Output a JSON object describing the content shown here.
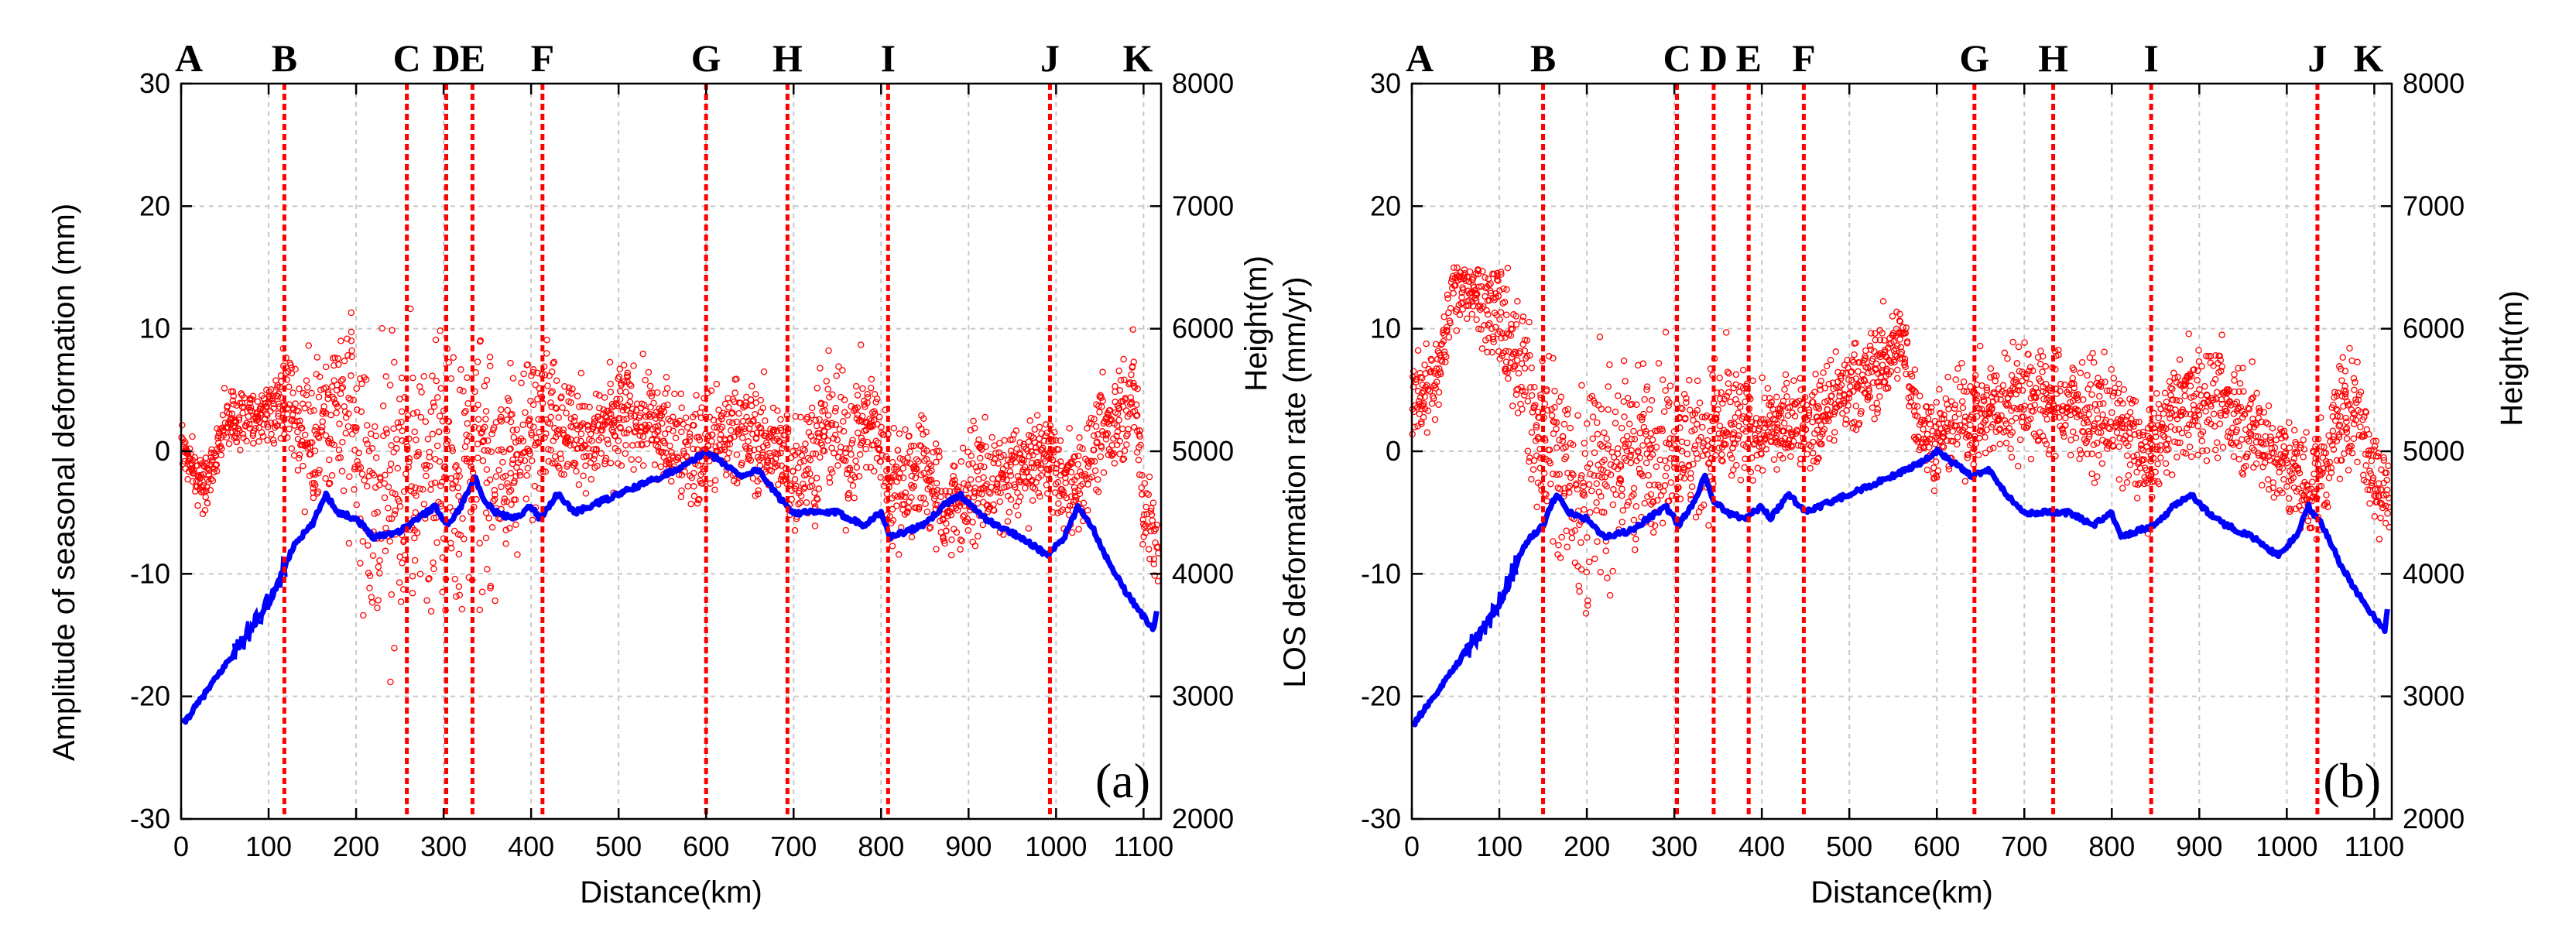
{
  "chart_data": [
    {
      "type": "scatter",
      "panel_label": "(a)",
      "xlabel": "Distance(km)",
      "ylabel": "Amplitude of seasonal deformation (mm)",
      "ylabel2": "",
      "ylim": [
        -30,
        30
      ],
      "y2lim": [
        2000,
        8000
      ],
      "xlim": [
        0,
        1120
      ],
      "xticks": [
        0,
        100,
        200,
        300,
        400,
        500,
        600,
        700,
        800,
        900,
        1000,
        1100
      ],
      "yticks": [
        -30,
        -20,
        -10,
        0,
        10,
        20,
        30
      ],
      "y2ticks": [
        2000,
        3000,
        4000,
        5000,
        6000,
        7000,
        8000
      ],
      "grid": true,
      "sections": [
        {
          "label": "A",
          "x": 0,
          "line": false
        },
        {
          "label": "B",
          "x": 118,
          "line": true
        },
        {
          "label": "C",
          "x": 258,
          "line": true
        },
        {
          "label": "D",
          "x": 303,
          "line": true
        },
        {
          "label": "E",
          "x": 333,
          "line": true
        },
        {
          "label": "F",
          "x": 413,
          "line": true
        },
        {
          "label": "G",
          "x": 600,
          "line": true
        },
        {
          "label": "H",
          "x": 693,
          "line": true
        },
        {
          "label": "I",
          "x": 808,
          "line": true
        },
        {
          "label": "J",
          "x": 993,
          "line": true
        },
        {
          "label": "K",
          "x": 1115,
          "line": false
        }
      ],
      "deformation_series": {
        "color": "#ff0000",
        "points": [
          [
            0,
            1
          ],
          [
            10,
            -1
          ],
          [
            20,
            -2.5
          ],
          [
            30,
            -2
          ],
          [
            40,
            0
          ],
          [
            50,
            2.5
          ],
          [
            70,
            2.5
          ],
          [
            90,
            3
          ],
          [
            105,
            3.5
          ],
          [
            118,
            5
          ],
          [
            130,
            3
          ],
          [
            150,
            1
          ],
          [
            170,
            4
          ],
          [
            190,
            2
          ],
          [
            210,
            -4
          ],
          [
            240,
            -3
          ],
          [
            260,
            -2
          ],
          [
            280,
            -3
          ],
          [
            300,
            -1
          ],
          [
            320,
            -2
          ],
          [
            340,
            -1
          ],
          [
            360,
            -2
          ],
          [
            380,
            0
          ],
          [
            400,
            1
          ],
          [
            410,
            4
          ],
          [
            430,
            3
          ],
          [
            450,
            1.5
          ],
          [
            470,
            1
          ],
          [
            490,
            2
          ],
          [
            510,
            3
          ],
          [
            530,
            2.5
          ],
          [
            550,
            1.5
          ],
          [
            570,
            1
          ],
          [
            590,
            -0.5
          ],
          [
            600,
            0.5
          ],
          [
            620,
            1
          ],
          [
            640,
            2
          ],
          [
            660,
            1
          ],
          [
            680,
            0
          ],
          [
            700,
            -2
          ],
          [
            720,
            0
          ],
          [
            740,
            2
          ],
          [
            760,
            0
          ],
          [
            780,
            2.5
          ],
          [
            800,
            1
          ],
          [
            810,
            -3
          ],
          [
            830,
            -2
          ],
          [
            850,
            -1
          ],
          [
            870,
            -5
          ],
          [
            890,
            -4
          ],
          [
            910,
            -2
          ],
          [
            930,
            -3
          ],
          [
            950,
            -2
          ],
          [
            970,
            -1
          ],
          [
            990,
            0
          ],
          [
            1010,
            -3
          ],
          [
            1030,
            -2
          ],
          [
            1050,
            1
          ],
          [
            1070,
            3
          ],
          [
            1090,
            5
          ],
          [
            1100,
            -5
          ],
          [
            1110,
            -6
          ],
          [
            1118,
            -8
          ]
        ],
        "spread": [
          [
            0,
            1.5
          ],
          [
            100,
            1.5
          ],
          [
            160,
            5
          ],
          [
            200,
            7
          ],
          [
            260,
            8
          ],
          [
            320,
            8
          ],
          [
            380,
            5
          ],
          [
            440,
            3
          ],
          [
            600,
            3
          ],
          [
            680,
            3
          ],
          [
            700,
            4
          ],
          [
            800,
            3
          ],
          [
            900,
            3
          ],
          [
            1000,
            2.5
          ],
          [
            1118,
            3
          ]
        ]
      },
      "height_series": {
        "color": "#0000ff",
        "points": [
          [
            0,
            2750
          ],
          [
            20,
            2950
          ],
          [
            40,
            3150
          ],
          [
            60,
            3350
          ],
          [
            80,
            3550
          ],
          [
            100,
            3750
          ],
          [
            118,
            4050
          ],
          [
            130,
            4250
          ],
          [
            150,
            4400
          ],
          [
            165,
            4650
          ],
          [
            180,
            4500
          ],
          [
            200,
            4450
          ],
          [
            220,
            4300
          ],
          [
            250,
            4350
          ],
          [
            270,
            4450
          ],
          [
            290,
            4550
          ],
          [
            305,
            4400
          ],
          [
            320,
            4550
          ],
          [
            335,
            4800
          ],
          [
            345,
            4600
          ],
          [
            360,
            4500
          ],
          [
            380,
            4450
          ],
          [
            400,
            4550
          ],
          [
            410,
            4450
          ],
          [
            430,
            4650
          ],
          [
            450,
            4500
          ],
          [
            500,
            4650
          ],
          [
            550,
            4800
          ],
          [
            580,
            4900
          ],
          [
            600,
            5000
          ],
          [
            620,
            4900
          ],
          [
            640,
            4800
          ],
          [
            660,
            4850
          ],
          [
            680,
            4650
          ],
          [
            700,
            4500
          ],
          [
            750,
            4500
          ],
          [
            780,
            4400
          ],
          [
            800,
            4500
          ],
          [
            810,
            4300
          ],
          [
            830,
            4350
          ],
          [
            850,
            4400
          ],
          [
            870,
            4550
          ],
          [
            890,
            4650
          ],
          [
            910,
            4500
          ],
          [
            930,
            4400
          ],
          [
            960,
            4300
          ],
          [
            990,
            4150
          ],
          [
            1010,
            4300
          ],
          [
            1025,
            4550
          ],
          [
            1040,
            4400
          ],
          [
            1060,
            4100
          ],
          [
            1080,
            3850
          ],
          [
            1100,
            3650
          ],
          [
            1112,
            3550
          ],
          [
            1115,
            3700
          ]
        ]
      }
    },
    {
      "type": "scatter",
      "panel_label": "(b)",
      "xlabel": "Distance(km)",
      "ylabel": "LOS deformation rate (mm/yr)",
      "ylabel_top": "Height(m)",
      "ylabel2": "Height(m)",
      "ylim": [
        -30,
        30
      ],
      "y2lim": [
        2000,
        8000
      ],
      "xlim": [
        0,
        1120
      ],
      "xticks": [
        0,
        100,
        200,
        300,
        400,
        500,
        600,
        700,
        800,
        900,
        1000,
        1100
      ],
      "yticks": [
        -30,
        -20,
        -10,
        0,
        10,
        20,
        30
      ],
      "y2ticks": [
        2000,
        3000,
        4000,
        5000,
        6000,
        7000,
        8000
      ],
      "grid": true,
      "sections": [
        {
          "label": "A",
          "x": 0,
          "line": false
        },
        {
          "label": "B",
          "x": 150,
          "line": true
        },
        {
          "label": "C",
          "x": 303,
          "line": true
        },
        {
          "label": "D",
          "x": 345,
          "line": true
        },
        {
          "label": "E",
          "x": 385,
          "line": true
        },
        {
          "label": "F",
          "x": 448,
          "line": true
        },
        {
          "label": "G",
          "x": 643,
          "line": true
        },
        {
          "label": "H",
          "x": 733,
          "line": true
        },
        {
          "label": "I",
          "x": 845,
          "line": true
        },
        {
          "label": "J",
          "x": 1035,
          "line": true
        },
        {
          "label": "K",
          "x": 1115,
          "line": false
        }
      ],
      "deformation_series": {
        "color": "#ff0000",
        "points": [
          [
            0,
            4
          ],
          [
            15,
            5
          ],
          [
            30,
            6
          ],
          [
            45,
            13
          ],
          [
            60,
            14
          ],
          [
            80,
            13
          ],
          [
            100,
            11
          ],
          [
            120,
            7
          ],
          [
            140,
            3
          ],
          [
            160,
            0
          ],
          [
            180,
            -2
          ],
          [
            200,
            -4
          ],
          [
            220,
            -2
          ],
          [
            240,
            -1
          ],
          [
            260,
            0
          ],
          [
            280,
            1
          ],
          [
            300,
            1
          ],
          [
            320,
            0
          ],
          [
            340,
            1
          ],
          [
            360,
            2
          ],
          [
            380,
            2
          ],
          [
            400,
            1.5
          ],
          [
            420,
            2
          ],
          [
            440,
            3
          ],
          [
            460,
            2
          ],
          [
            480,
            4
          ],
          [
            500,
            5
          ],
          [
            520,
            6
          ],
          [
            540,
            7.5
          ],
          [
            560,
            9
          ],
          [
            580,
            2
          ],
          [
            600,
            1
          ],
          [
            620,
            2
          ],
          [
            640,
            3
          ],
          [
            660,
            3
          ],
          [
            680,
            4
          ],
          [
            700,
            5
          ],
          [
            720,
            4
          ],
          [
            740,
            4
          ],
          [
            760,
            3.5
          ],
          [
            780,
            3
          ],
          [
            800,
            2.5
          ],
          [
            820,
            1
          ],
          [
            840,
            -1
          ],
          [
            860,
            2
          ],
          [
            880,
            4
          ],
          [
            900,
            4.5
          ],
          [
            920,
            4
          ],
          [
            940,
            3.5
          ],
          [
            960,
            2
          ],
          [
            980,
            0
          ],
          [
            1000,
            -1
          ],
          [
            1020,
            -3
          ],
          [
            1040,
            -2
          ],
          [
            1060,
            3
          ],
          [
            1080,
            4
          ],
          [
            1095,
            -1
          ],
          [
            1105,
            -2
          ],
          [
            1118,
            -4
          ]
        ],
        "spread": [
          [
            0,
            2
          ],
          [
            60,
            2
          ],
          [
            140,
            5
          ],
          [
            200,
            6
          ],
          [
            300,
            4
          ],
          [
            360,
            4
          ],
          [
            400,
            2.5
          ],
          [
            500,
            2.5
          ],
          [
            600,
            2.5
          ],
          [
            700,
            3
          ],
          [
            800,
            3
          ],
          [
            900,
            3
          ],
          [
            1000,
            3
          ],
          [
            1118,
            3
          ]
        ]
      },
      "height_series": {
        "color": "#0000ff",
        "points": [
          [
            0,
            2750
          ],
          [
            20,
            2950
          ],
          [
            40,
            3150
          ],
          [
            60,
            3350
          ],
          [
            80,
            3550
          ],
          [
            100,
            3750
          ],
          [
            118,
            4050
          ],
          [
            130,
            4250
          ],
          [
            150,
            4400
          ],
          [
            165,
            4650
          ],
          [
            180,
            4500
          ],
          [
            200,
            4450
          ],
          [
            220,
            4300
          ],
          [
            250,
            4350
          ],
          [
            270,
            4450
          ],
          [
            290,
            4550
          ],
          [
            305,
            4400
          ],
          [
            320,
            4550
          ],
          [
            335,
            4800
          ],
          [
            345,
            4600
          ],
          [
            360,
            4500
          ],
          [
            380,
            4450
          ],
          [
            400,
            4550
          ],
          [
            410,
            4450
          ],
          [
            430,
            4650
          ],
          [
            450,
            4500
          ],
          [
            500,
            4650
          ],
          [
            550,
            4800
          ],
          [
            580,
            4900
          ],
          [
            600,
            5000
          ],
          [
            620,
            4900
          ],
          [
            640,
            4800
          ],
          [
            660,
            4850
          ],
          [
            680,
            4650
          ],
          [
            700,
            4500
          ],
          [
            750,
            4500
          ],
          [
            780,
            4400
          ],
          [
            800,
            4500
          ],
          [
            810,
            4300
          ],
          [
            830,
            4350
          ],
          [
            850,
            4400
          ],
          [
            870,
            4550
          ],
          [
            890,
            4650
          ],
          [
            910,
            4500
          ],
          [
            930,
            4400
          ],
          [
            960,
            4300
          ],
          [
            990,
            4150
          ],
          [
            1010,
            4300
          ],
          [
            1025,
            4550
          ],
          [
            1040,
            4400
          ],
          [
            1060,
            4100
          ],
          [
            1080,
            3850
          ],
          [
            1100,
            3650
          ],
          [
            1112,
            3550
          ],
          [
            1115,
            3700
          ]
        ]
      }
    }
  ]
}
